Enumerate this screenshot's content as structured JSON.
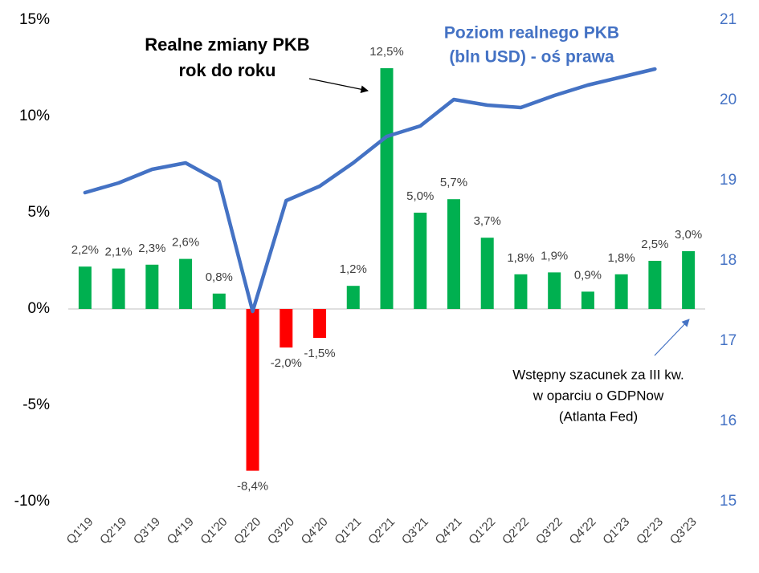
{
  "chart_data": {
    "type": "bar_line",
    "categories": [
      "Q1'19",
      "Q2'19",
      "Q3'19",
      "Q4'19",
      "Q1'20",
      "Q2'20",
      "Q3'20",
      "Q4'20",
      "Q1'21",
      "Q2'21",
      "Q3'21",
      "Q4'21",
      "Q1'22",
      "Q2'22",
      "Q3'22",
      "Q4'22",
      "Q1'23",
      "Q2'23",
      "Q3'23"
    ],
    "series": [
      {
        "name": "Realne zmiany PKB rok do roku",
        "type": "bar",
        "axis": "y",
        "color": "#00b050",
        "negative_color": "#ff0000",
        "values": [
          2.2,
          2.1,
          2.3,
          2.6,
          0.8,
          -8.4,
          -2.0,
          -1.5,
          1.2,
          12.5,
          5.0,
          5.7,
          3.7,
          1.8,
          1.9,
          0.9,
          1.8,
          2.5,
          3.0
        ],
        "value_labels": [
          "2,2%",
          "2,1%",
          "2,3%",
          "2,6%",
          "0,8%",
          "-8,4%",
          "-2,0%",
          "-1,5%",
          "1,2%",
          "12,5%",
          "5,0%",
          "5,7%",
          "3,7%",
          "1,8%",
          "1,9%",
          "0,9%",
          "1,8%",
          "2,5%",
          "3,0%"
        ]
      },
      {
        "name": "Poziom realnego PKB (bln USD) - oś prawa",
        "type": "line",
        "axis": "y2",
        "color": "#4472c4",
        "values": [
          18.85,
          18.97,
          19.14,
          19.22,
          18.99,
          17.37,
          18.75,
          18.93,
          19.22,
          19.55,
          19.68,
          20.01,
          19.94,
          19.91,
          20.06,
          20.19,
          20.29,
          20.39,
          null
        ]
      }
    ],
    "bar_title": [
      "Realne zmiany PKB",
      "rok do roku"
    ],
    "line_title": [
      "Poziom realnego PKB",
      "(bln USD) - oś prawa"
    ],
    "annotation": [
      "Wstępny szacunek za III kw.",
      "w oparciu o GDPNow",
      "(Atlanta Fed)"
    ],
    "ylim": [
      -10,
      15
    ],
    "yticks": [
      {
        "value": 15,
        "label": "15%"
      },
      {
        "value": 10,
        "label": "10%"
      },
      {
        "value": 5,
        "label": "5%"
      },
      {
        "value": 0,
        "label": "0%"
      },
      {
        "value": -5,
        "label": "-5%"
      },
      {
        "value": -10,
        "label": "-10%"
      }
    ],
    "y2lim": [
      15,
      21
    ],
    "y2ticks": [
      15,
      16,
      17,
      18,
      19,
      20,
      21
    ]
  }
}
